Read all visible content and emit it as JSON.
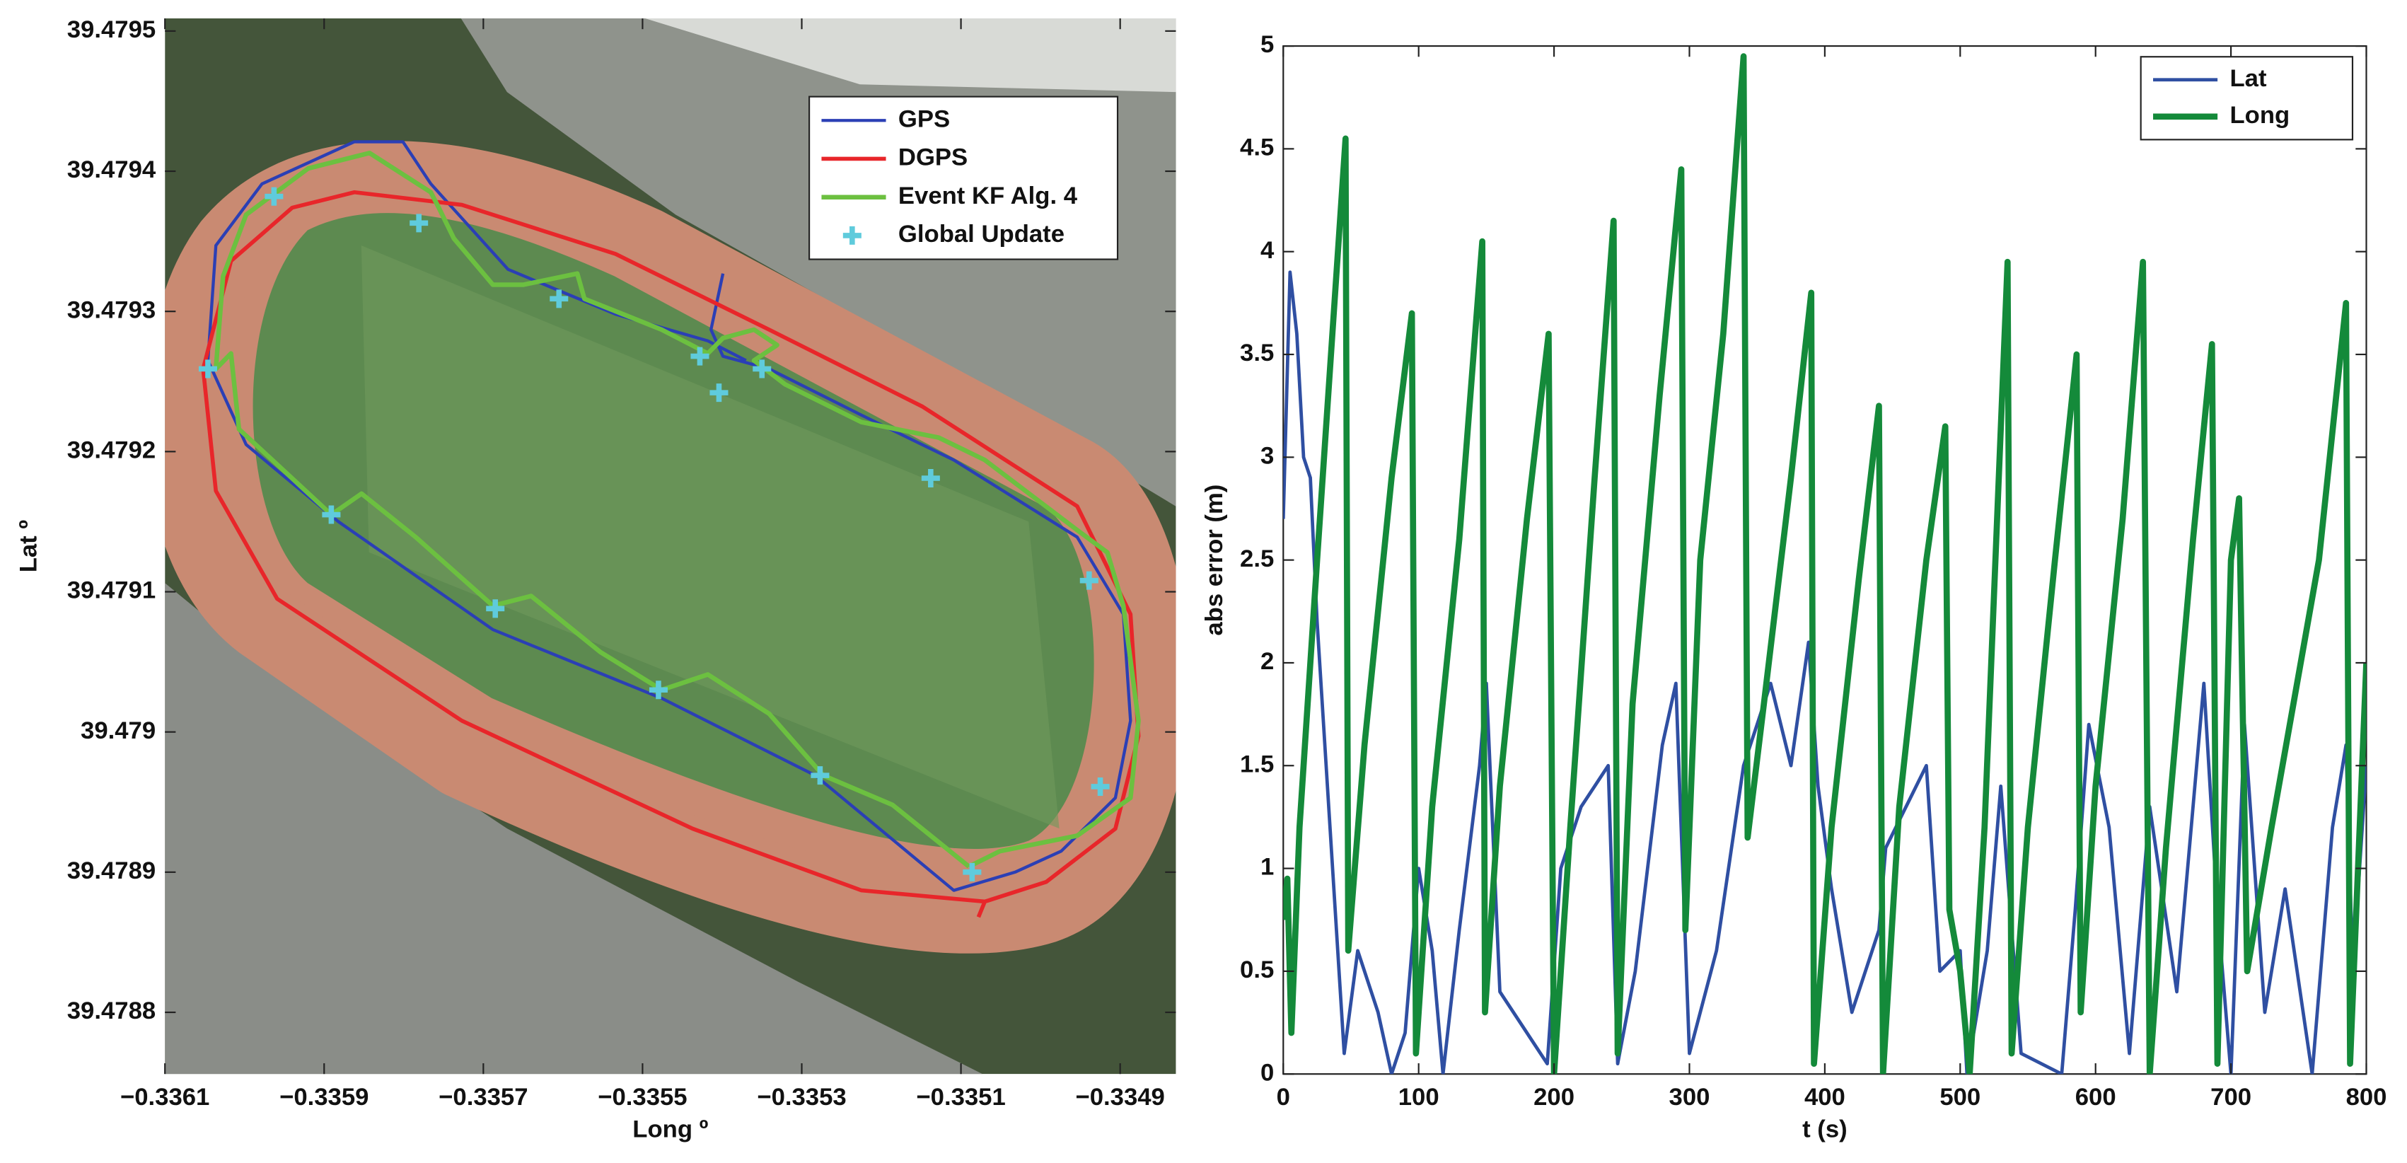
{
  "chart_data": [
    {
      "type": "line",
      "xlabel": "Long º",
      "ylabel": "Lat º",
      "xlim": [
        -0.3361,
        -0.33483
      ],
      "ylim": [
        39.478756,
        39.479509
      ],
      "xticks": [
        {
          "value": -0.3361,
          "label": "−0.3361"
        },
        {
          "value": -0.3359,
          "label": "−0.3359"
        },
        {
          "value": -0.3357,
          "label": "−0.3357"
        },
        {
          "value": -0.3355,
          "label": "−0.3355"
        },
        {
          "value": -0.3353,
          "label": "−0.3353"
        },
        {
          "value": -0.3351,
          "label": "−0.3351"
        },
        {
          "value": -0.3349,
          "label": "−0.3349"
        }
      ],
      "yticks": [
        39.4788,
        39.4789,
        39.479,
        39.4791,
        39.4792,
        39.4793,
        39.4794,
        39.4795
      ],
      "legend": "upper right",
      "series": [
        {
          "name": "GPS",
          "color": "#2b3fb5",
          "linewidth": 2,
          "x": [
            -0.335399,
            -0.335414,
            -0.335399,
            -0.335341,
            -0.335225,
            -0.335109,
            -0.334954,
            -0.334896,
            -0.334887,
            -0.334906,
            -0.334974,
            -0.335032,
            -0.335109,
            -0.335283,
            -0.335476,
            -0.335688,
            -0.335882,
            -0.335998,
            -0.336046,
            -0.336036,
            -0.335978,
            -0.335862,
            -0.335801,
            -0.335766,
            -0.335669,
            -0.335534,
            -0.335418,
            -0.33537
          ],
          "values": [
            39.479327,
            39.479287,
            39.479268,
            39.479259,
            39.479226,
            39.479194,
            39.479139,
            39.479084,
            39.479008,
            39.478953,
            39.478915,
            39.4789,
            39.478887,
            39.478969,
            39.479024,
            39.479073,
            39.47915,
            39.479205,
            39.479265,
            39.479347,
            39.479391,
            39.479421,
            39.479421,
            39.479391,
            39.47933,
            39.479298,
            39.479279,
            39.479265
          ]
        },
        {
          "name": "DGPS",
          "color": "#e8262a",
          "linewidth": 2.6,
          "x": [
            -0.335078,
            -0.33507,
            -0.334993,
            -0.334906,
            -0.334877,
            -0.334887,
            -0.334954,
            -0.335148,
            -0.335341,
            -0.335534,
            -0.335727,
            -0.335862,
            -0.33594,
            -0.336017,
            -0.336052,
            -0.336036,
            -0.335959,
            -0.335727,
            -0.335437,
            -0.335225,
            -0.33507
          ],
          "values": [
            39.478868,
            39.478879,
            39.478893,
            39.478931,
            39.478997,
            39.479084,
            39.479161,
            39.479232,
            39.479287,
            39.479341,
            39.479376,
            39.479385,
            39.479374,
            39.479336,
            39.479259,
            39.479172,
            39.479095,
            39.479008,
            39.478931,
            39.478887,
            39.478879
          ]
        },
        {
          "name": "Event KF Alg. 4",
          "color": "#6cc040",
          "linewidth": 3,
          "x": [
            -0.33509,
            -0.335051,
            -0.334954,
            -0.334887,
            -0.334877,
            -0.334896,
            -0.334916,
            -0.334954,
            -0.33507,
            -0.335128,
            -0.335225,
            -0.335321,
            -0.33536,
            -0.335331,
            -0.33536,
            -0.335399,
            -0.335418,
            -0.335476,
            -0.335573,
            -0.335582,
            -0.33565,
            -0.335688,
            -0.335737,
            -0.335756,
            -0.335766,
            -0.335843,
            -0.33592,
            -0.335998,
            -0.336027,
            -0.336036,
            -0.336017,
            -0.336007,
            -0.335891,
            -0.335853,
            -0.335785,
            -0.335688,
            -0.33564,
            -0.335553,
            -0.335476,
            -0.335418,
            -0.335341,
            -0.335273,
            -0.335186,
            -0.33509
          ],
          "values": [
            39.478904,
            39.478915,
            39.478926,
            39.478953,
            39.479008,
            39.47909,
            39.479128,
            39.479144,
            39.479194,
            39.47921,
            39.479221,
            39.479248,
            39.479265,
            39.479276,
            39.479287,
            39.479281,
            39.47927,
            39.479287,
            39.479309,
            39.479327,
            39.479319,
            39.479319,
            39.479352,
            39.479374,
            39.479385,
            39.479413,
            39.479402,
            39.479369,
            39.479325,
            39.479259,
            39.47927,
            39.479216,
            39.479155,
            39.47917,
            39.479139,
            39.47909,
            39.479097,
            39.479057,
            39.47903,
            39.479041,
            39.479013,
            39.478969,
            39.478948,
            39.478904
          ]
        },
        {
          "name": "Global Update",
          "color": "#5fcbdc",
          "marker": "plus",
          "x": [
            -0.335963,
            -0.335781,
            -0.335605,
            -0.335428,
            -0.335404,
            -0.33535,
            -0.336046,
            -0.335891,
            -0.335685,
            -0.33548,
            -0.335277,
            -0.335086,
            -0.334925,
            -0.334939,
            -0.335138
          ],
          "values": [
            39.479382,
            39.479363,
            39.479309,
            39.479268,
            39.479242,
            39.479259,
            39.479259,
            39.479155,
            39.479088,
            39.47903,
            39.478969,
            39.4789,
            39.478961,
            39.479108,
            39.479181
          ]
        }
      ]
    },
    {
      "type": "line",
      "xlabel": "t (s)",
      "ylabel": "abs error (m)",
      "xlim": [
        0,
        800
      ],
      "ylim": [
        0,
        5
      ],
      "xticks": [
        0,
        100,
        200,
        300,
        400,
        500,
        600,
        700,
        800
      ],
      "yticks": [
        0,
        0.5,
        1,
        1.5,
        2,
        2.5,
        3,
        3.5,
        4,
        4.5,
        5
      ],
      "legend": "upper right",
      "series": [
        {
          "name": "Lat",
          "color": "#2f4fa2",
          "linewidth": 2.2,
          "x": [
            0,
            5,
            10,
            15,
            20,
            25,
            45,
            55,
            70,
            80,
            90,
            100,
            110,
            118,
            130,
            145,
            150,
            160,
            180,
            195,
            205,
            220,
            240,
            247,
            260,
            280,
            290,
            300,
            320,
            340,
            360,
            375,
            388,
            395,
            405,
            420,
            440,
            445,
            460,
            475,
            485,
            500,
            505,
            520,
            530,
            545,
            575,
            585,
            595,
            610,
            625,
            640,
            660,
            680,
            690,
            700,
            710,
            725,
            740,
            760,
            775,
            785,
            790,
            800
          ],
          "values": [
            2.7,
            3.9,
            3.6,
            3.0,
            2.9,
            2.2,
            0.1,
            0.6,
            0.3,
            0,
            0.2,
            1.0,
            0.6,
            0,
            0.7,
            1.5,
            1.9,
            0.4,
            0.2,
            0.05,
            1.0,
            1.3,
            1.5,
            0.05,
            0.5,
            1.6,
            1.9,
            0.1,
            0.6,
            1.5,
            1.9,
            1.5,
            2.1,
            1.4,
            0.9,
            0.3,
            0.7,
            1.1,
            1.3,
            1.5,
            0.5,
            0.6,
            0,
            0.6,
            1.4,
            0.1,
            0,
            0.8,
            1.7,
            1.2,
            0.1,
            1.3,
            0.4,
            1.9,
            0.8,
            0,
            1.7,
            0.3,
            0.9,
            0,
            1.2,
            1.6,
            0.5,
            1.5
          ]
        },
        {
          "name": "Long",
          "color": "#148a3a",
          "linewidth": 4,
          "x": [
            0,
            3,
            6,
            12,
            25,
            46,
            48,
            60,
            80,
            95,
            98,
            110,
            130,
            147,
            149,
            160,
            180,
            196,
            200,
            212,
            230,
            244,
            247,
            258,
            278,
            294,
            297,
            308,
            325,
            340,
            343,
            355,
            375,
            390,
            392,
            405,
            425,
            440,
            443,
            455,
            475,
            489,
            492,
            500,
            507,
            518,
            535,
            538,
            550,
            570,
            586,
            589,
            600,
            620,
            635,
            640,
            652,
            672,
            686,
            690,
            700,
            706,
            712,
            730,
            765,
            785,
            788,
            800
          ],
          "values": [
            0.75,
            0.95,
            0.2,
            1.2,
            2.5,
            4.55,
            0.6,
            1.6,
            2.9,
            3.7,
            0.1,
            1.3,
            2.6,
            4.05,
            0.3,
            1.4,
            2.7,
            3.6,
            0,
            1.2,
            2.9,
            4.15,
            0.1,
            1.8,
            3.3,
            4.4,
            0.7,
            2.5,
            3.6,
            4.95,
            1.15,
            1.8,
            2.9,
            3.8,
            0.05,
            1.2,
            2.4,
            3.25,
            0,
            1.3,
            2.5,
            3.15,
            0.8,
            0.5,
            0,
            1.2,
            3.95,
            0.1,
            1.2,
            2.5,
            3.5,
            0.3,
            1.4,
            2.7,
            3.95,
            0,
            1.1,
            2.6,
            3.55,
            0.05,
            2.5,
            2.8,
            0.5,
            1.2,
            2.5,
            3.75,
            0.05,
            2
          ]
        }
      ]
    }
  ]
}
